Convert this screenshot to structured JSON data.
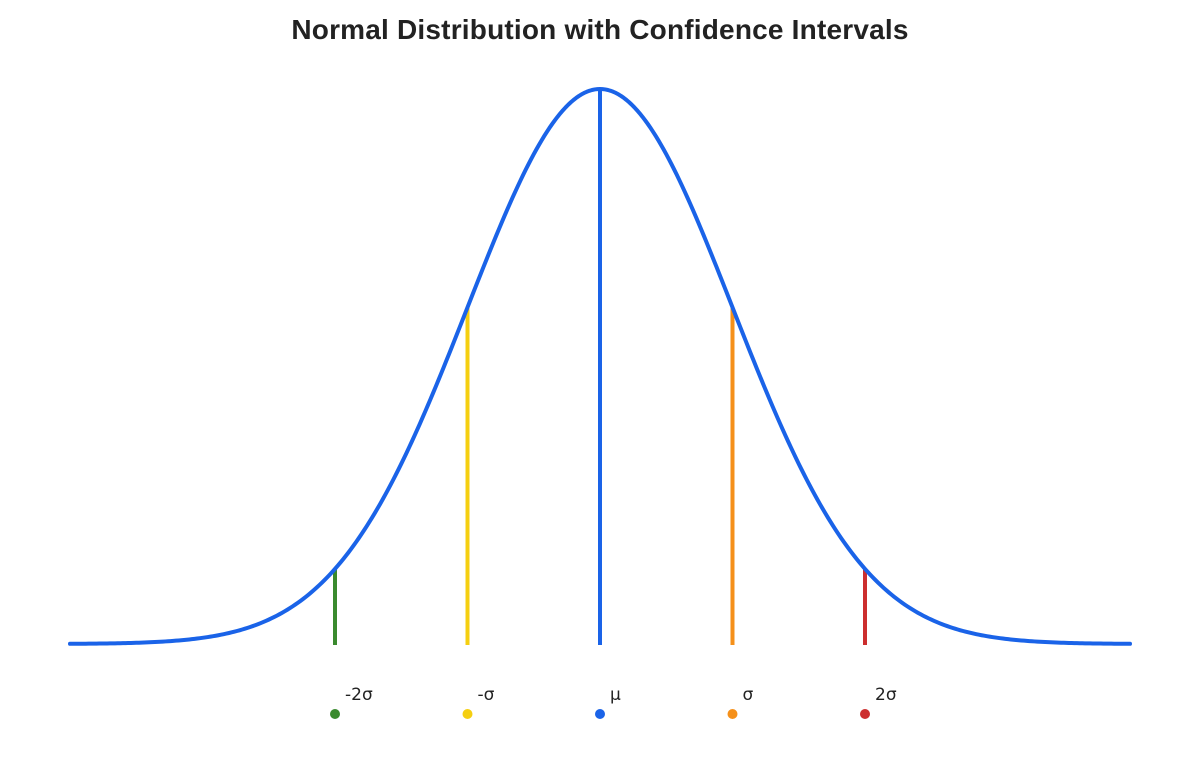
{
  "chart_data": {
    "type": "line",
    "title": "Normal Distribution with Confidence Intervals",
    "xlabel": "",
    "ylabel": "",
    "xlim": [
      -4,
      4
    ],
    "mean": 0,
    "std": 1,
    "grid": false,
    "curve": {
      "color": "#1a63e8",
      "x_range": [
        -4,
        4
      ]
    },
    "markers": [
      {
        "x": -2,
        "label": "-2σ",
        "color": "#3a8a2e"
      },
      {
        "x": -1,
        "label": "-σ",
        "color": "#f5cf10"
      },
      {
        "x": 0,
        "label": "μ",
        "color": "#1a63e8"
      },
      {
        "x": 1,
        "label": "σ",
        "color": "#f5901a"
      },
      {
        "x": 2,
        "label": "2σ",
        "color": "#cc2e2e"
      }
    ]
  }
}
